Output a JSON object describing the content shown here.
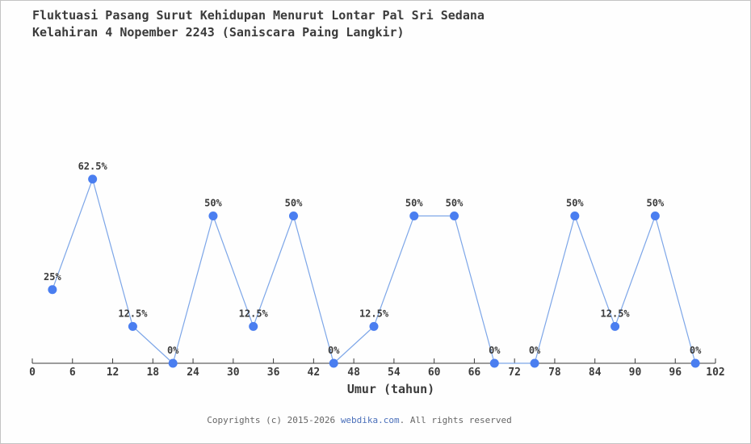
{
  "title": {
    "line1": "Fluktuasi Pasang Surut Kehidupan Menurut Lontar Pal Sri Sedana",
    "line2": "Kelahiran 4 Nopember 2243 (Saniscara Paing Langkir)"
  },
  "chart_data": {
    "type": "line",
    "title": "Fluktuasi Pasang Surut Kehidupan Menurut Lontar Pal Sri Sedana — Kelahiran 4 Nopember 2243 (Saniscara Paing Langkir)",
    "xlabel": "Umur (tahun)",
    "ylabel": "",
    "x": [
      3,
      9,
      15,
      21,
      27,
      33,
      39,
      45,
      51,
      57,
      63,
      69,
      75,
      81,
      87,
      93,
      99
    ],
    "values": [
      25,
      62.5,
      12.5,
      0,
      50,
      12.5,
      50,
      0,
      12.5,
      50,
      50,
      0,
      0,
      50,
      12.5,
      50,
      0
    ],
    "point_labels": [
      "25%",
      "62.5%",
      "12.5%",
      "0%",
      "50%",
      "12.5%",
      "50%",
      "0%",
      "12.5%",
      "50%",
      "50%",
      "0%",
      "0%",
      "50%",
      "12.5%",
      "50%",
      "0%"
    ],
    "x_ticks": [
      0,
      6,
      12,
      18,
      24,
      30,
      36,
      42,
      48,
      54,
      60,
      66,
      72,
      78,
      84,
      90,
      96,
      102
    ],
    "xlim": [
      0,
      102
    ],
    "ylim": [
      0,
      100
    ],
    "grid": false,
    "legend": "none",
    "colors": {
      "line": "#7da6e8",
      "marker": "#4a7ef0",
      "axis": "#3b3b3b",
      "label_text": "#3b3b3b"
    }
  },
  "footer": {
    "prefix": "Copyrights (c) 2015-2026 ",
    "link": "webdika.com",
    "suffix": ". All rights reserved",
    "link_color": "#4a6fba"
  }
}
